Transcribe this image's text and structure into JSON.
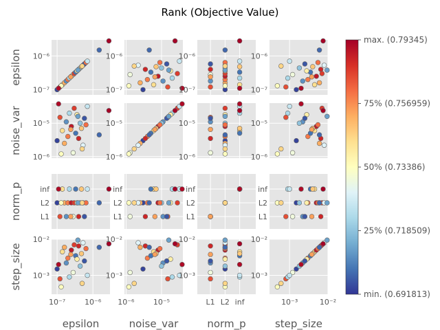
{
  "chart_data": {
    "type": "scatter",
    "title": "Rank (Objective Value)",
    "variables": [
      "epsilon",
      "noise_var",
      "norm_p",
      "step_size"
    ],
    "axis_labels": {
      "epsilon": "epsilon",
      "noise_var": "noise_var",
      "norm_p": "norm_p",
      "step_size": "step_size"
    },
    "scales": {
      "epsilon": {
        "kind": "log",
        "range": [
          7e-08,
          3e-06
        ]
      },
      "noise_var": {
        "kind": "log",
        "range": [
          9e-07,
          4e-05
        ]
      },
      "norm_p": {
        "kind": "categorical",
        "categories": [
          "L1",
          "L2",
          "inf"
        ]
      },
      "step_size": {
        "kind": "log",
        "range": [
          0.0003,
          0.01
        ]
      }
    },
    "ticks": {
      "epsilon": [
        {
          "value": 1e-07,
          "label": "10⁻⁷"
        },
        {
          "value": 1e-06,
          "label": "10⁻⁶"
        }
      ],
      "noise_var": [
        {
          "value": 1e-06,
          "label": "10⁻⁶"
        },
        {
          "value": 1e-05,
          "label": "10⁻⁵"
        }
      ],
      "norm_p": [
        {
          "value": "L1",
          "label": "L1"
        },
        {
          "value": "L2",
          "label": "L2"
        },
        {
          "value": "inf",
          "label": "inf"
        }
      ],
      "step_size": [
        {
          "value": 0.001,
          "label": "10⁻³"
        },
        {
          "value": 0.01,
          "label": "10⁻²"
        }
      ]
    },
    "colorbar": {
      "colormap": "RdYlBu_r",
      "min": 0.691813,
      "max": 0.79345,
      "ticks": [
        {
          "frac": 0,
          "label": "min. (0.691813)"
        },
        {
          "frac": 0.25,
          "label": "25% (0.718509)"
        },
        {
          "frac": 0.5,
          "label": "50% (0.73386)"
        },
        {
          "frac": 0.75,
          "label": "75% (0.756959)"
        },
        {
          "frac": 1,
          "label": "max. (0.79345)"
        }
      ]
    },
    "grid": true,
    "points": [
      {
        "epsilon": 1e-07,
        "noise_var": 3e-06,
        "norm_p": "L2",
        "step_size": 0.0015,
        "rank": 0.02
      },
      {
        "epsilon": 1.2e-07,
        "noise_var": 1.5e-05,
        "norm_p": "L1",
        "step_size": 0.0008,
        "rank": 0.85
      },
      {
        "epsilon": 1.4e-07,
        "noise_var": 6e-06,
        "norm_p": "inf",
        "step_size": 0.0045,
        "rank": 0.6
      },
      {
        "epsilon": 1.6e-07,
        "noise_var": 2.5e-06,
        "norm_p": "L2",
        "step_size": 0.006,
        "rank": 0.7
      },
      {
        "epsilon": 1.8e-07,
        "noise_var": 1.1e-05,
        "norm_p": "L1",
        "step_size": 0.0022,
        "rank": 0.15
      },
      {
        "epsilon": 2e-07,
        "noise_var": 4e-06,
        "norm_p": "L2",
        "step_size": 0.003,
        "rank": 0.78
      },
      {
        "epsilon": 2.2e-07,
        "noise_var": 2e-05,
        "norm_p": "inf",
        "step_size": 0.0009,
        "rank": 0.3
      },
      {
        "epsilon": 2.5e-07,
        "noise_var": 8e-06,
        "norm_p": "L2",
        "step_size": 0.005,
        "rank": 0.95
      },
      {
        "epsilon": 2.8e-07,
        "noise_var": 1.3e-06,
        "norm_p": "L1",
        "step_size": 0.0012,
        "rank": 0.45
      },
      {
        "epsilon": 3e-07,
        "noise_var": 2.8e-05,
        "norm_p": "L2",
        "step_size": 0.007,
        "rank": 0.88
      },
      {
        "epsilon": 3.3e-07,
        "noise_var": 5e-06,
        "norm_p": "inf",
        "step_size": 0.0035,
        "rank": 0.1
      },
      {
        "epsilon": 3.6e-07,
        "noise_var": 1.8e-05,
        "norm_p": "L2",
        "step_size": 0.0028,
        "rank": 0.55
      },
      {
        "epsilon": 4e-07,
        "noise_var": 3.5e-06,
        "norm_p": "L1",
        "step_size": 0.0065,
        "rank": 0.92
      },
      {
        "epsilon": 4.4e-07,
        "noise_var": 1e-05,
        "norm_p": "L2",
        "step_size": 0.0018,
        "rank": 0.25
      },
      {
        "epsilon": 4.8e-07,
        "noise_var": 7e-06,
        "norm_p": "inf",
        "step_size": 0.004,
        "rank": 0.65
      },
      {
        "epsilon": 5.3e-07,
        "noise_var": 2.2e-06,
        "norm_p": "L2",
        "step_size": 0.008,
        "rank": 0.4
      },
      {
        "epsilon": 5.8e-07,
        "noise_var": 1.4e-05,
        "norm_p": "L1",
        "step_size": 0.0025,
        "rank": 0.05
      },
      {
        "epsilon": 6.4e-07,
        "noise_var": 9e-06,
        "norm_p": "L2",
        "step_size": 0.0055,
        "rank": 0.8
      },
      {
        "epsilon": 7e-07,
        "noise_var": 3.2e-05,
        "norm_p": "inf",
        "step_size": 0.001,
        "rank": 0.35
      },
      {
        "epsilon": 1.5e-06,
        "noise_var": 4.5e-06,
        "norm_p": "L2",
        "step_size": 0.006,
        "rank": 0.08
      },
      {
        "epsilon": 2.8e-06,
        "noise_var": 2.4e-05,
        "norm_p": "inf",
        "step_size": 0.0075,
        "rank": 1.0
      },
      {
        "epsilon": 1.3e-07,
        "noise_var": 1.2e-06,
        "norm_p": "L2",
        "step_size": 0.00048,
        "rank": 0.5
      },
      {
        "epsilon": 2.4e-07,
        "noise_var": 6.5e-06,
        "norm_p": "L1",
        "step_size": 0.0038,
        "rank": 0.72
      },
      {
        "epsilon": 3.8e-07,
        "noise_var": 1.6e-05,
        "norm_p": "L2",
        "step_size": 0.0095,
        "rank": 0.18
      },
      {
        "epsilon": 1.1e-07,
        "noise_var": 3.8e-05,
        "norm_p": "inf",
        "step_size": 0.002,
        "rank": 0.98
      },
      {
        "epsilon": 5e-07,
        "noise_var": 1.7e-06,
        "norm_p": "L2",
        "step_size": 0.0006,
        "rank": 0.62
      }
    ]
  }
}
